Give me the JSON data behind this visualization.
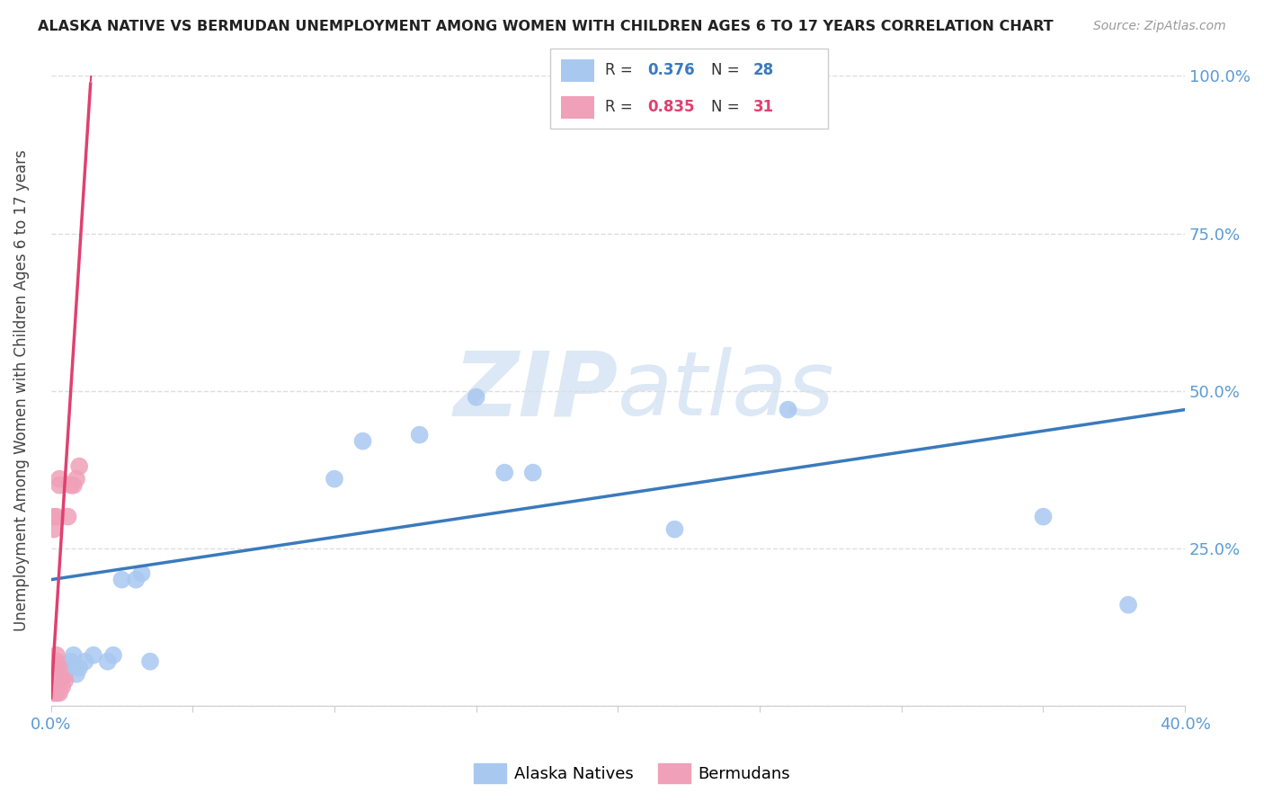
{
  "title": "ALASKA NATIVE VS BERMUDAN UNEMPLOYMENT AMONG WOMEN WITH CHILDREN AGES 6 TO 17 YEARS CORRELATION CHART",
  "source": "Source: ZipAtlas.com",
  "ylabel": "Unemployment Among Women with Children Ages 6 to 17 years",
  "xlim": [
    0.0,
    0.4
  ],
  "ylim": [
    0.0,
    1.0
  ],
  "alaska_x": [
    0.001,
    0.002,
    0.003,
    0.004,
    0.005,
    0.006,
    0.007,
    0.008,
    0.009,
    0.01,
    0.012,
    0.015,
    0.02,
    0.022,
    0.025,
    0.03,
    0.032,
    0.035,
    0.1,
    0.11,
    0.13,
    0.15,
    0.16,
    0.17,
    0.22,
    0.26,
    0.35,
    0.38
  ],
  "alaska_y": [
    0.05,
    0.04,
    0.05,
    0.06,
    0.05,
    0.06,
    0.07,
    0.08,
    0.05,
    0.06,
    0.07,
    0.08,
    0.07,
    0.08,
    0.2,
    0.2,
    0.21,
    0.07,
    0.36,
    0.42,
    0.43,
    0.49,
    0.37,
    0.37,
    0.28,
    0.47,
    0.3,
    0.16
  ],
  "bermuda_x": [
    0.001,
    0.001,
    0.001,
    0.001,
    0.001,
    0.001,
    0.001,
    0.001,
    0.002,
    0.002,
    0.002,
    0.002,
    0.002,
    0.002,
    0.002,
    0.002,
    0.003,
    0.003,
    0.003,
    0.003,
    0.003,
    0.003,
    0.003,
    0.004,
    0.004,
    0.005,
    0.006,
    0.007,
    0.008,
    0.009,
    0.01
  ],
  "bermuda_y": [
    0.02,
    0.03,
    0.04,
    0.05,
    0.06,
    0.07,
    0.28,
    0.3,
    0.02,
    0.03,
    0.04,
    0.05,
    0.06,
    0.07,
    0.08,
    0.3,
    0.02,
    0.03,
    0.04,
    0.05,
    0.06,
    0.35,
    0.36,
    0.03,
    0.04,
    0.04,
    0.3,
    0.35,
    0.35,
    0.36,
    0.38
  ],
  "alaska_color": "#a8c8f0",
  "bermuda_color": "#f0a0b8",
  "alaska_line_color": "#3a7abd",
  "bermuda_line_color": "#e04070",
  "alaska_R": 0.376,
  "alaska_N": 28,
  "bermuda_R": 0.835,
  "bermuda_N": 31,
  "alaska_trend_x": [
    0.0,
    0.4
  ],
  "alaska_trend_y": [
    0.2,
    0.47
  ],
  "bermuda_trend_x0": 0.0,
  "bermuda_trend_x1": 0.014,
  "bermuda_trend_y_at_0": 0.01,
  "bermuda_slope": 70.0,
  "background_color": "#ffffff",
  "grid_color": "#dddddd",
  "watermark_zip": "ZIP",
  "watermark_atlas": "atlas",
  "watermark_color": "#dce8f5"
}
